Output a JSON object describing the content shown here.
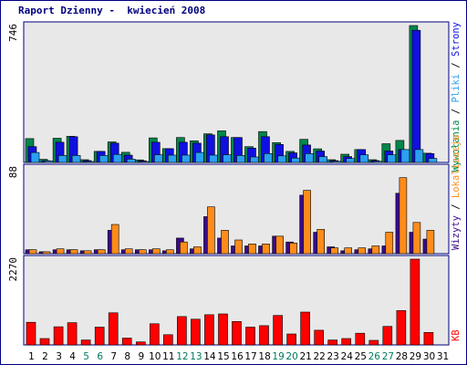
{
  "title": "Raport Dzienny -  kwiecień 2008",
  "colors": {
    "border": "#000080",
    "panel_bg": "#e8e8e8",
    "wizyty": "#00864b",
    "strony": "#1010e0",
    "pliki": "#2aa0f0",
    "lokalizacje_dark": "#3b0a8a",
    "lokalizacje": "#ff8c1a",
    "kb": "#ff0000",
    "day_label_weekday": "#000000",
    "day_label_weekend": "#007a5e"
  },
  "chart_data": [
    {
      "type": "bar",
      "panel": "top",
      "ymax_label": "746",
      "ylim": [
        0,
        746
      ],
      "right_labels": [
        {
          "text": "Wywołania",
          "color": "#00864b"
        },
        {
          "text": "Pliki",
          "color": "#2aa0f0"
        },
        {
          "text": "Strony",
          "color": "#1010e0"
        }
      ],
      "separator": " / ",
      "series": [
        {
          "name": "Wywołania",
          "values": [
            130,
            17,
            132,
            142,
            15,
            60,
            112,
            55,
            14,
            134,
            75,
            136,
            118,
            156,
            172,
            136,
            86,
            168,
            108,
            60,
            126,
            74,
            15,
            45,
            70,
            15,
            102,
            120,
            746,
            50,
            0
          ]
        },
        {
          "name": "Strony",
          "values": [
            86,
            10,
            110,
            140,
            10,
            60,
            105,
            40,
            9,
            110,
            75,
            110,
            105,
            150,
            140,
            136,
            78,
            140,
            98,
            52,
            95,
            62,
            10,
            32,
            70,
            10,
            62,
            70,
            720,
            48,
            0
          ]
        },
        {
          "name": "Pliki",
          "values": [
            54,
            8,
            38,
            38,
            5,
            38,
            44,
            18,
            4,
            42,
            40,
            40,
            54,
            40,
            42,
            38,
            30,
            48,
            36,
            24,
            48,
            32,
            6,
            22,
            42,
            6,
            42,
            70,
            70,
            22,
            0
          ]
        }
      ]
    },
    {
      "type": "bar",
      "panel": "middle",
      "ymax_label": "88",
      "ylim": [
        0,
        88
      ],
      "right_labels": [
        {
          "text": "Wizyty",
          "color": "#3b0a8a"
        },
        {
          "text": "Lokalizacje",
          "color": "#ff8c1a"
        }
      ],
      "separator": " / ",
      "series": [
        {
          "name": "Wizyty",
          "values": [
            4,
            2,
            4,
            4,
            3,
            4,
            24,
            4,
            4,
            4,
            3,
            16,
            5,
            38,
            16,
            8,
            8,
            8,
            18,
            12,
            60,
            22,
            7,
            3,
            4,
            5,
            8,
            62,
            22,
            15,
            0
          ]
        },
        {
          "name": "Lokalizacje",
          "values": [
            4,
            2,
            5,
            4,
            3,
            4,
            30,
            5,
            4,
            5,
            4,
            12,
            7,
            48,
            24,
            14,
            10,
            10,
            18,
            11,
            65,
            25,
            6,
            6,
            6,
            8,
            22,
            78,
            32,
            24,
            0
          ]
        }
      ]
    },
    {
      "type": "bar",
      "panel": "bottom",
      "ymax_label": "2270",
      "ylim": [
        0,
        2270
      ],
      "right_labels": [
        {
          "text": "KB",
          "color": "#ff0000"
        }
      ],
      "series": [
        {
          "name": "KB",
          "values": [
            600,
            170,
            480,
            590,
            130,
            470,
            850,
            180,
            80,
            560,
            270,
            750,
            680,
            800,
            820,
            620,
            470,
            510,
            780,
            290,
            870,
            390,
            130,
            170,
            310,
            120,
            490,
            910,
            2270,
            330,
            0
          ]
        }
      ]
    }
  ],
  "x_axis": {
    "days": [
      "1",
      "2",
      "3",
      "4",
      "5",
      "6",
      "7",
      "8",
      "9",
      "10",
      "11",
      "12",
      "13",
      "14",
      "15",
      "16",
      "17",
      "18",
      "19",
      "20",
      "21",
      "22",
      "23",
      "24",
      "25",
      "26",
      "27",
      "28",
      "29",
      "30",
      "31"
    ],
    "weekend_days": [
      "5",
      "6",
      "12",
      "13",
      "19",
      "20",
      "26",
      "27"
    ]
  }
}
